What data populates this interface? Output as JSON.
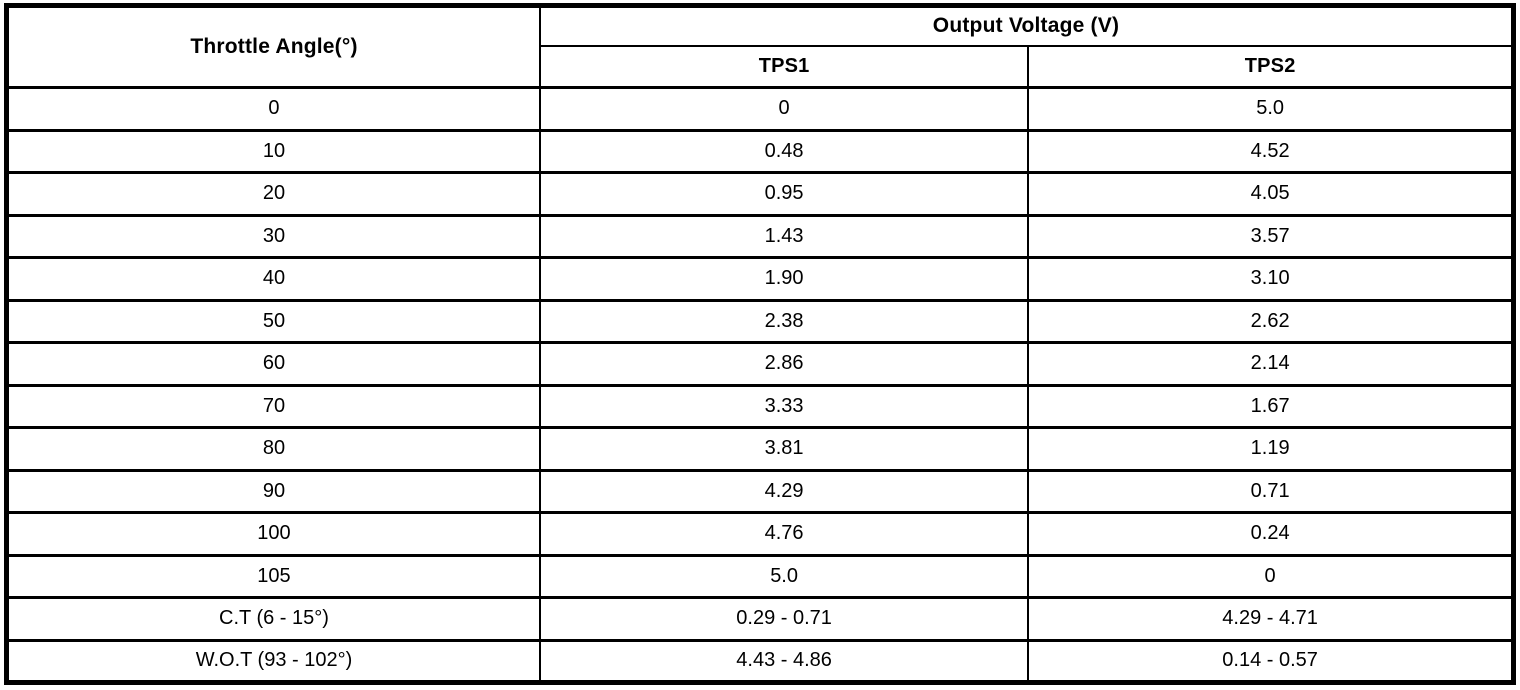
{
  "table": {
    "angle_header": "Throttle Angle(°)",
    "group_header": "Output Voltage (V)",
    "sub_headers": {
      "tps1": "TPS1",
      "tps2": "TPS2"
    },
    "rows": [
      {
        "angle": "0",
        "tps1": "0",
        "tps2": "5.0"
      },
      {
        "angle": "10",
        "tps1": "0.48",
        "tps2": "4.52"
      },
      {
        "angle": "20",
        "tps1": "0.95",
        "tps2": "4.05"
      },
      {
        "angle": "30",
        "tps1": "1.43",
        "tps2": "3.57"
      },
      {
        "angle": "40",
        "tps1": "1.90",
        "tps2": "3.10"
      },
      {
        "angle": "50",
        "tps1": "2.38",
        "tps2": "2.62"
      },
      {
        "angle": "60",
        "tps1": "2.86",
        "tps2": "2.14"
      },
      {
        "angle": "70",
        "tps1": "3.33",
        "tps2": "1.67"
      },
      {
        "angle": "80",
        "tps1": "3.81",
        "tps2": "1.19"
      },
      {
        "angle": "90",
        "tps1": "4.29",
        "tps2": "0.71"
      },
      {
        "angle": "100",
        "tps1": "4.76",
        "tps2": "0.24"
      },
      {
        "angle": "105",
        "tps1": "5.0",
        "tps2": "0"
      },
      {
        "angle": "C.T (6 - 15°)",
        "tps1": "0.29 - 0.71",
        "tps2": "4.29 - 4.71"
      },
      {
        "angle": "W.O.T (93 - 102°)",
        "tps1": "4.43 - 4.86",
        "tps2": "0.14 - 0.57"
      }
    ],
    "colors": {
      "border": "#000000",
      "text": "#000000",
      "background": "#ffffff"
    }
  }
}
